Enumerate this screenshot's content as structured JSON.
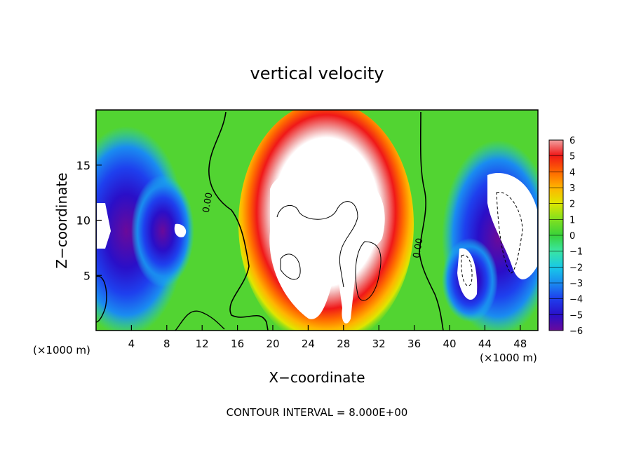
{
  "chart_data": {
    "type": "heatmap",
    "title": "vertical velocity",
    "xlabel": "X−coordinate",
    "ylabel": "Z−coordinate",
    "x_unit_left": "(×1000 m)",
    "x_unit_right": "(×1000 m)",
    "footer": "CONTOUR INTERVAL = 8.000E+00",
    "xlim": [
      0,
      50
    ],
    "ylim": [
      0,
      20
    ],
    "x_ticks": [
      4,
      8,
      12,
      16,
      20,
      24,
      28,
      32,
      36,
      40,
      44,
      48
    ],
    "y_ticks": [
      5,
      10,
      15
    ],
    "colorbar": {
      "ticks": [
        "6",
        "5",
        "4",
        "3",
        "2",
        "1",
        "0",
        "−1",
        "−2",
        "−3",
        "−4",
        "−5",
        "−6"
      ],
      "range": [
        -6,
        6
      ],
      "colors": [
        "#6a0a9a",
        "#2a0fc8",
        "#1e40ee",
        "#1a8cf0",
        "#18c8e8",
        "#3ae6a0",
        "#38d23a",
        "#7ee020",
        "#e0e600",
        "#ffb400",
        "#ff6a00",
        "#f01818",
        "#f0a0a0"
      ]
    },
    "contour_labels": [
      "0.00",
      "0.00"
    ]
  }
}
